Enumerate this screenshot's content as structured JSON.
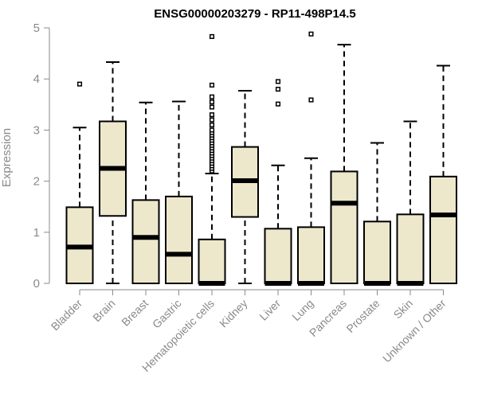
{
  "chart_data": {
    "type": "boxplot",
    "title": "ENSG00000203279 - RP11-498P14.5",
    "ylabel": "Expression",
    "xlabel": "",
    "ylim": [
      0,
      5
    ],
    "yticks": [
      "0",
      "1",
      "2",
      "3",
      "4",
      "5"
    ],
    "box_color": "#ede7cc",
    "grid": false,
    "categories": [
      "Bladder",
      "Brain",
      "Breast",
      "Gastric",
      "Hematopoietic cells",
      "Kidney",
      "Liver",
      "Lung",
      "Pancreas",
      "Prostate",
      "Skin",
      "Unknown / Other"
    ],
    "boxes": [
      {
        "min": 0,
        "q1": 0,
        "median": 0.71,
        "q3": 1.49,
        "max": 3.05,
        "outliers": [
          3.9
        ]
      },
      {
        "min": 0,
        "q1": 1.32,
        "median": 2.25,
        "q3": 3.17,
        "max": 4.33,
        "outliers": []
      },
      {
        "min": 0,
        "q1": 0,
        "median": 0.9,
        "q3": 1.63,
        "max": 3.54,
        "outliers": []
      },
      {
        "min": 0,
        "q1": 0,
        "median": 0.57,
        "q3": 1.7,
        "max": 3.56,
        "outliers": []
      },
      {
        "min": 0,
        "q1": 0,
        "median": 0,
        "q3": 0.86,
        "max": 2.15,
        "outliers": [
          2.2,
          2.25,
          2.3,
          2.35,
          2.4,
          2.45,
          2.5,
          2.55,
          2.6,
          2.65,
          2.7,
          2.75,
          2.8,
          2.85,
          2.9,
          2.95,
          3.0,
          3.1,
          3.2,
          3.3,
          3.45,
          3.55,
          3.65,
          3.88,
          4.83
        ]
      },
      {
        "min": 0,
        "q1": 1.3,
        "median": 2.01,
        "q3": 2.67,
        "max": 3.77,
        "outliers": []
      },
      {
        "min": 0,
        "q1": 0,
        "median": 0,
        "q3": 1.07,
        "max": 2.31,
        "outliers": [
          3.51,
          3.8,
          3.95
        ]
      },
      {
        "min": 0,
        "q1": 0,
        "median": 0,
        "q3": 1.1,
        "max": 2.45,
        "outliers": [
          3.59,
          4.88
        ]
      },
      {
        "min": 0,
        "q1": 0,
        "median": 1.57,
        "q3": 2.19,
        "max": 4.67,
        "outliers": []
      },
      {
        "min": 0,
        "q1": 0,
        "median": 0,
        "q3": 1.21,
        "max": 2.75,
        "outliers": []
      },
      {
        "min": 0,
        "q1": 0,
        "median": 0,
        "q3": 1.35,
        "max": 3.17,
        "outliers": []
      },
      {
        "min": 0,
        "q1": 0,
        "median": 1.34,
        "q3": 2.09,
        "max": 4.26,
        "outliers": []
      }
    ]
  }
}
